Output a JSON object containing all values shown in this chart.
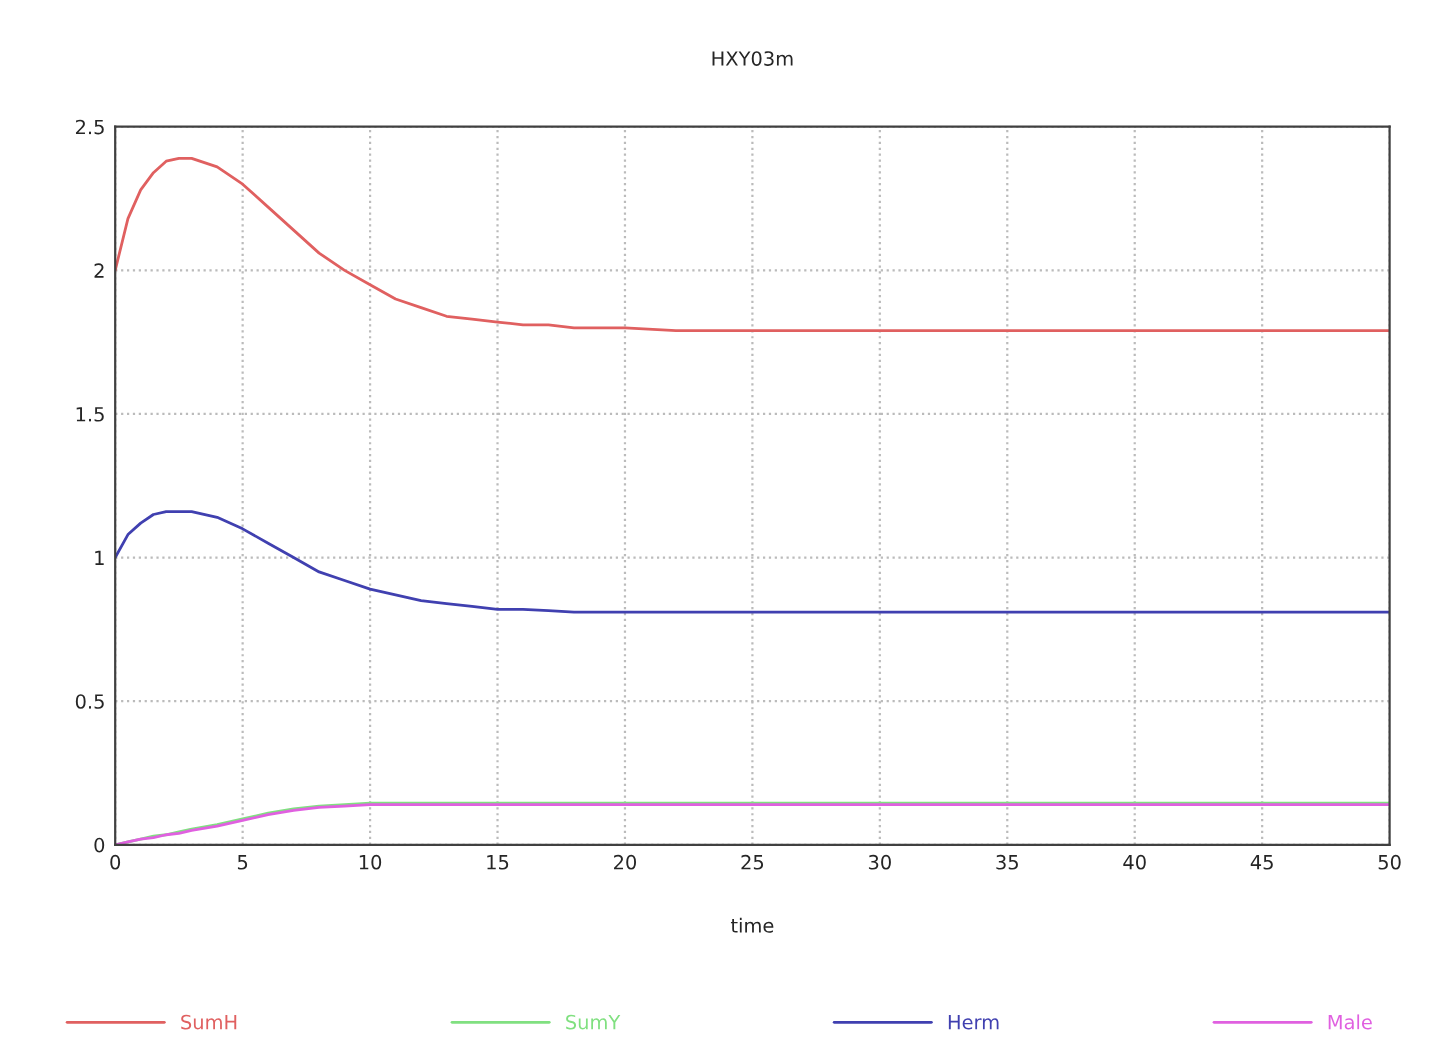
{
  "chart_data": {
    "type": "line",
    "title": "HXY03m",
    "xlabel": "time",
    "xlim": [
      0,
      50
    ],
    "ylim": [
      0,
      2.5
    ],
    "xticks": [
      0,
      5,
      10,
      15,
      20,
      25,
      30,
      35,
      40,
      45,
      50
    ],
    "yticks": [
      0,
      0.5,
      1,
      1.5,
      2,
      2.5
    ],
    "grid": true,
    "legend": "bottom",
    "line_style": "solid",
    "marker": "none",
    "x": [
      0,
      0.5,
      1,
      1.5,
      2,
      2.5,
      3,
      4,
      5,
      6,
      7,
      8,
      9,
      10,
      11,
      12,
      13,
      14,
      15,
      16,
      17,
      18,
      20,
      22,
      25,
      30,
      35,
      40,
      45,
      50
    ],
    "series": [
      {
        "name": "SumH",
        "color": "#e06060",
        "values": [
          2.0,
          2.18,
          2.28,
          2.34,
          2.38,
          2.39,
          2.39,
          2.36,
          2.3,
          2.22,
          2.14,
          2.06,
          2.0,
          1.95,
          1.9,
          1.87,
          1.84,
          1.83,
          1.82,
          1.81,
          1.81,
          1.8,
          1.8,
          1.79,
          1.79,
          1.79,
          1.79,
          1.79,
          1.79,
          1.79
        ]
      },
      {
        "name": "SumY",
        "color": "#80e080",
        "values": [
          0.0,
          0.01,
          0.02,
          0.03,
          0.035,
          0.045,
          0.055,
          0.07,
          0.09,
          0.11,
          0.125,
          0.135,
          0.14,
          0.145,
          0.145,
          0.145,
          0.145,
          0.145,
          0.145,
          0.145,
          0.145,
          0.145,
          0.145,
          0.145,
          0.145,
          0.145,
          0.145,
          0.145,
          0.145,
          0.145
        ]
      },
      {
        "name": "Herm",
        "color": "#4040b0",
        "values": [
          1.0,
          1.08,
          1.12,
          1.15,
          1.16,
          1.16,
          1.16,
          1.14,
          1.1,
          1.05,
          1.0,
          0.95,
          0.92,
          0.89,
          0.87,
          0.85,
          0.84,
          0.83,
          0.82,
          0.82,
          0.815,
          0.81,
          0.81,
          0.81,
          0.81,
          0.81,
          0.81,
          0.81,
          0.81,
          0.81
        ]
      },
      {
        "name": "Male",
        "color": "#e060e0",
        "values": [
          0.0,
          0.01,
          0.02,
          0.025,
          0.035,
          0.04,
          0.05,
          0.065,
          0.085,
          0.105,
          0.12,
          0.13,
          0.135,
          0.14,
          0.14,
          0.14,
          0.14,
          0.14,
          0.14,
          0.14,
          0.14,
          0.14,
          0.14,
          0.14,
          0.14,
          0.14,
          0.14,
          0.14,
          0.14,
          0.14
        ]
      }
    ]
  }
}
